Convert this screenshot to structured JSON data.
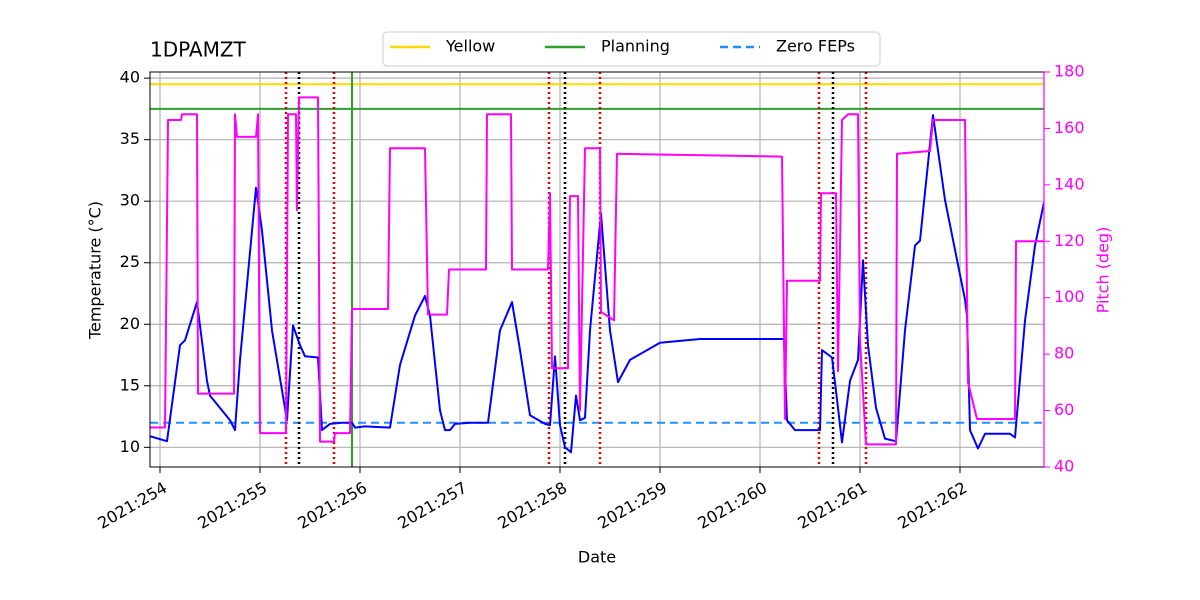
{
  "chart_data": {
    "type": "line",
    "title": "1DPAMZT",
    "xlabel": "Date",
    "ylabel": "Temperature (°C)",
    "y2label": "Pitch (deg)",
    "xlim": [
      253.9,
      262.84
    ],
    "xticks": [
      {
        "value": 254,
        "label": "2021:254"
      },
      {
        "value": 255,
        "label": "2021:255"
      },
      {
        "value": 256,
        "label": "2021:256"
      },
      {
        "value": 257,
        "label": "2021:257"
      },
      {
        "value": 258,
        "label": "2021:258"
      },
      {
        "value": 259,
        "label": "2021:259"
      },
      {
        "value": 260,
        "label": "2021:260"
      },
      {
        "value": 261,
        "label": "2021:261"
      },
      {
        "value": 262,
        "label": "2021:262"
      }
    ],
    "ylim": [
      8.4,
      40.5
    ],
    "yticks": [
      10,
      15,
      20,
      25,
      30,
      35,
      40
    ],
    "y2lim": [
      40,
      180
    ],
    "y2ticks": [
      40,
      60,
      80,
      100,
      120,
      140,
      160,
      180
    ],
    "y2color": "#ff00ff",
    "grid": true,
    "legend": "upper center",
    "series": [
      {
        "color": "#0000ff",
        "x": [
          253.9,
          254.07,
          254.2,
          254.25,
          254.37,
          254.47,
          254.5,
          254.7,
          254.75,
          254.8,
          254.96,
          255.02,
          255.12,
          255.27,
          255.33,
          255.4,
          255.45,
          255.58,
          255.62,
          255.7,
          255.82,
          255.92,
          255.95,
          256.05,
          256.3,
          256.4,
          256.55,
          256.65,
          256.7,
          256.8,
          256.85,
          256.9,
          256.95,
          257.1,
          257.28,
          257.4,
          257.52,
          257.6,
          257.7,
          257.85,
          257.9,
          257.95,
          258.0,
          258.05,
          258.11,
          258.16,
          258.2,
          258.25,
          258.3,
          258.41,
          258.5,
          258.58,
          258.7,
          259.0,
          259.4,
          260.24,
          260.27,
          260.35,
          260.6,
          260.62,
          260.72,
          260.78,
          260.82,
          260.9,
          260.98,
          261.03,
          261.08,
          261.16,
          261.25,
          261.36,
          261.45,
          261.55,
          261.6,
          261.73,
          261.85,
          262.05,
          262.07,
          262.1,
          262.18,
          262.25,
          262.5,
          262.55,
          262.65,
          262.75,
          262.84
        ],
        "values": [
          10.9,
          10.5,
          18.3,
          18.7,
          21.8,
          15.4,
          14.2,
          12.2,
          11.4,
          17.1,
          31.1,
          27.6,
          19.5,
          12.2,
          19.9,
          18.3,
          17.4,
          17.3,
          11.4,
          11.9,
          12.0,
          12.0,
          11.6,
          11.7,
          11.6,
          16.7,
          20.7,
          22.3,
          20.7,
          13.0,
          11.4,
          11.4,
          11.9,
          12.0,
          12.0,
          19.5,
          21.8,
          17.9,
          12.6,
          11.9,
          11.8,
          17.4,
          11.8,
          10.0,
          9.6,
          14.2,
          12.2,
          12.4,
          19.5,
          29.0,
          19.5,
          15.3,
          17.1,
          18.5,
          18.8,
          18.8,
          12.2,
          11.4,
          11.4,
          17.9,
          17.3,
          13.2,
          10.4,
          15.4,
          17.1,
          25.2,
          18.3,
          13.2,
          10.7,
          10.5,
          19.5,
          26.4,
          26.8,
          37.0,
          30.1,
          22.0,
          20.7,
          11.4,
          9.9,
          11.1,
          11.1,
          10.8,
          20.3,
          26.4,
          29.9
        ]
      },
      {
        "color": "#ff00ff",
        "axis": "y2",
        "x": [
          253.9,
          254.05,
          254.08,
          254.21,
          254.22,
          254.37,
          254.38,
          254.74,
          254.75,
          254.77,
          254.96,
          254.98,
          255.0,
          255.26,
          255.28,
          255.36,
          255.37,
          255.39,
          255.58,
          255.6,
          255.74,
          255.75,
          255.9,
          255.92,
          256.28,
          256.3,
          256.65,
          256.68,
          256.87,
          256.89,
          257.26,
          257.27,
          257.51,
          257.52,
          257.88,
          257.9,
          257.92,
          258.08,
          258.1,
          258.18,
          258.2,
          258.25,
          258.4,
          258.41,
          258.54,
          258.57,
          260.22,
          260.25,
          260.27,
          260.6,
          260.61,
          260.76,
          260.78,
          260.82,
          260.88,
          260.98,
          261.0,
          261.06,
          261.36,
          261.37,
          261.7,
          261.73,
          262.05,
          262.08,
          262.17,
          262.55,
          262.56,
          262.84
        ],
        "values": [
          54,
          54,
          163,
          163,
          165,
          165,
          66,
          66,
          165,
          157,
          157,
          165,
          52,
          52,
          165,
          165,
          131,
          171,
          171,
          49,
          49,
          52,
          52,
          96,
          96,
          153,
          153,
          94,
          94,
          110,
          110,
          165,
          165,
          110,
          110,
          137,
          75,
          75,
          136,
          136,
          60,
          153,
          153,
          95,
          92,
          151,
          150,
          57,
          106,
          106,
          137,
          137,
          74,
          163,
          165,
          165,
          85,
          48,
          48,
          151,
          152,
          163,
          163,
          70,
          57,
          57,
          120,
          120
        ]
      }
    ],
    "hlines": [
      {
        "name": "Yellow",
        "color": "#ffd700",
        "value": 39.5,
        "dash": "solid"
      },
      {
        "name": "Planning",
        "color": "#2ca02c",
        "value": 37.5,
        "dash": "solid"
      },
      {
        "name": "Zero FEPs",
        "color": "#1e90ff",
        "value": 12,
        "dash": "dashed"
      }
    ],
    "vlines": [
      {
        "x": 255.92,
        "color": "#2ca02c",
        "dash": "solid"
      },
      {
        "x": 255.39,
        "color": "#000000",
        "dash": "dotted"
      },
      {
        "x": 258.05,
        "color": "#000000",
        "dash": "dotted"
      },
      {
        "x": 260.73,
        "color": "#000000",
        "dash": "dotted"
      },
      {
        "x": 255.26,
        "color": "#dd0000",
        "dash": "dotted"
      },
      {
        "x": 255.74,
        "color": "#dd0000",
        "dash": "dotted"
      },
      {
        "x": 257.89,
        "color": "#dd0000",
        "dash": "dotted"
      },
      {
        "x": 258.4,
        "color": "#dd0000",
        "dash": "dotted"
      },
      {
        "x": 260.59,
        "color": "#dd0000",
        "dash": "dotted"
      },
      {
        "x": 261.06,
        "color": "#dd0000",
        "dash": "dotted"
      }
    ]
  }
}
